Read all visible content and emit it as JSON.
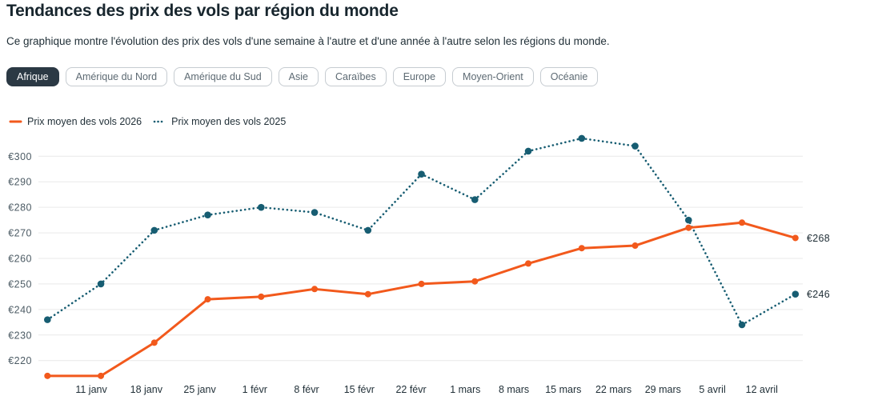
{
  "header": {
    "title": "Tendances des prix des vols par région du monde",
    "subtitle": "Ce graphique montre l'évolution des prix des vols d'une semaine à l'autre et d'une année à l'autre selon les régions du monde."
  },
  "region_tabs": [
    {
      "label": "Afrique",
      "selected": true
    },
    {
      "label": "Amérique du Nord",
      "selected": false
    },
    {
      "label": "Amérique du Sud",
      "selected": false
    },
    {
      "label": "Asie",
      "selected": false
    },
    {
      "label": "Caraïbes",
      "selected": false
    },
    {
      "label": "Europe",
      "selected": false
    },
    {
      "label": "Moyen-Orient",
      "selected": false
    },
    {
      "label": "Océanie",
      "selected": false
    }
  ],
  "legend": [
    {
      "label": "Prix moyen des vols 2026",
      "color": "#f2591c",
      "style": "solid"
    },
    {
      "label": "Prix moyen des vols 2025",
      "color": "#175d72",
      "style": "dotted"
    }
  ],
  "colors": {
    "accent_orange": "#f2591c",
    "accent_teal": "#175d72",
    "selected_tab_bg": "#2b3944",
    "gridline": "#e9e9e9",
    "axis_text": "#4c5b64",
    "dark_text": "#1f2e36"
  },
  "chart_data": {
    "type": "line",
    "title": "Tendances des prix des vols par région du monde",
    "categories": [
      "",
      "11 janv",
      "18 janv",
      "25 janv",
      "1 févr",
      "8 févr",
      "15 févr",
      "22 févr",
      "1 mars",
      "8 mars",
      "15 mars",
      "22 mars",
      "29 mars",
      "5 avril",
      "12 avril"
    ],
    "series": [
      {
        "name": "Prix moyen des vols 2026",
        "color": "#f2591c",
        "style": "solid",
        "values": [
          214,
          214,
          227,
          244,
          245,
          248,
          246,
          250,
          251,
          258,
          264,
          265,
          272,
          274,
          268
        ],
        "end_label": "€268"
      },
      {
        "name": "Prix moyen des vols 2025",
        "color": "#175d72",
        "style": "dotted",
        "values": [
          236,
          250,
          271,
          277,
          280,
          278,
          271,
          293,
          283,
          302,
          307,
          304,
          275,
          234,
          246
        ],
        "end_label": "€246"
      }
    ],
    "y_ticks": [
      "€300",
      "€290",
      "€280",
      "€270",
      "€260",
      "€250",
      "€240",
      "€230",
      "€220"
    ],
    "y_tick_values": [
      300,
      290,
      280,
      270,
      260,
      250,
      240,
      230,
      220
    ],
    "ylim": [
      210,
      312
    ],
    "currency": "€",
    "grid": "horizontal",
    "legend_position": "top-left"
  }
}
